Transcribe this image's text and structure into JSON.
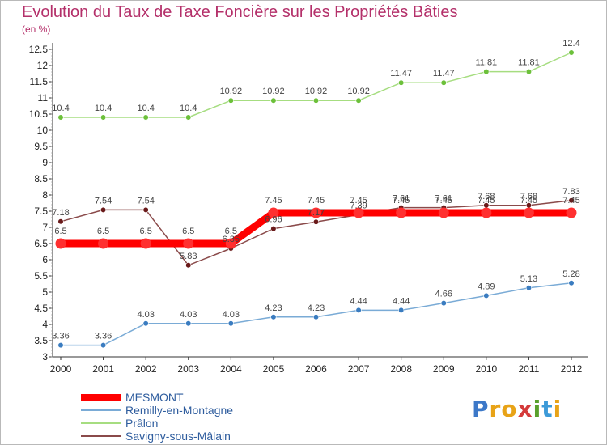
{
  "title": "Evolution du Taux de Taxe Foncière sur les Propriétés Bâties",
  "unit_label": "(en %)",
  "logo": {
    "text": "Proxiti",
    "letters": [
      "P",
      "r",
      "o",
      "x",
      "i",
      "t",
      "i"
    ],
    "colors": [
      "#3c78c8",
      "#e8a317",
      "#e8a317",
      "#d43a3a",
      "#5aa02c",
      "#3c9ad8",
      "#e8a317"
    ]
  },
  "chart_data": {
    "type": "line",
    "title": "Evolution du Taux de Taxe Foncière sur les Propriétés Bâties",
    "ylabel": "(en %)",
    "xlabel": "",
    "x": [
      "2000",
      "2001",
      "2002",
      "2003",
      "2004",
      "2005",
      "2006",
      "2007",
      "2008",
      "2009",
      "2010",
      "2011",
      "2012"
    ],
    "ylim": [
      3,
      12.5
    ],
    "yticks": [
      "3",
      "3.5",
      "4",
      "4.5",
      "5",
      "5.5",
      "6",
      "6.5",
      "7",
      "7.5",
      "8",
      "8.5",
      "9",
      "9.5",
      "10",
      "10.5",
      "11",
      "11.5",
      "12",
      "12.5"
    ],
    "grid": false,
    "legend_position": "bottom-left",
    "series": [
      {
        "name": "MESMONT",
        "color": "#ff0000",
        "marker": "#ff3030",
        "values": [
          6.5,
          6.5,
          6.5,
          6.5,
          6.5,
          7.45,
          7.45,
          7.45,
          7.45,
          7.45,
          7.45,
          7.45,
          7.45
        ],
        "labels": [
          "6.5",
          "6.5",
          "6.5",
          "6.5",
          "6.5",
          "7.45",
          "7.45",
          "7.45",
          "7.45",
          "7.45",
          "7.45",
          "7.45",
          "7.45"
        ]
      },
      {
        "name": "Remilly-en-Montagne",
        "color": "#7aabd6",
        "marker": "#3a7cc0",
        "values": [
          3.36,
          3.36,
          4.03,
          4.03,
          4.03,
          4.23,
          4.23,
          4.44,
          4.44,
          4.66,
          4.89,
          5.13,
          5.28
        ],
        "labels": [
          "3.36",
          "3.36",
          "4.03",
          "4.03",
          "4.03",
          "4.23",
          "4.23",
          "4.44",
          "4.44",
          "4.66",
          "4.89",
          "5.13",
          "5.28"
        ]
      },
      {
        "name": "Prâlon",
        "color": "#a6dd80",
        "marker": "#6cc03a",
        "values": [
          10.4,
          10.4,
          10.4,
          10.4,
          10.92,
          10.92,
          10.92,
          10.92,
          11.47,
          11.47,
          11.81,
          11.81,
          12.4
        ],
        "labels": [
          "10.4",
          "10.4",
          "10.4",
          "10.4",
          "10.92",
          "10.92",
          "10.92",
          "10.92",
          "11.47",
          "11.47",
          "11.81",
          "11.81",
          "12.4"
        ]
      },
      {
        "name": "Savigny-sous-Mâlain",
        "color": "#8a4a4a",
        "marker": "#6a1a1a",
        "values": [
          7.18,
          7.54,
          7.54,
          5.83,
          6.35,
          6.96,
          7.17,
          7.39,
          7.61,
          7.61,
          7.68,
          7.68,
          7.83
        ],
        "labels": [
          "7.18",
          "7.54",
          "7.54",
          "5.83",
          "6.35",
          "6.96",
          "7.17",
          "7.39",
          "7.61",
          "7.61",
          "7.68",
          "7.68",
          "7.83"
        ]
      }
    ]
  }
}
